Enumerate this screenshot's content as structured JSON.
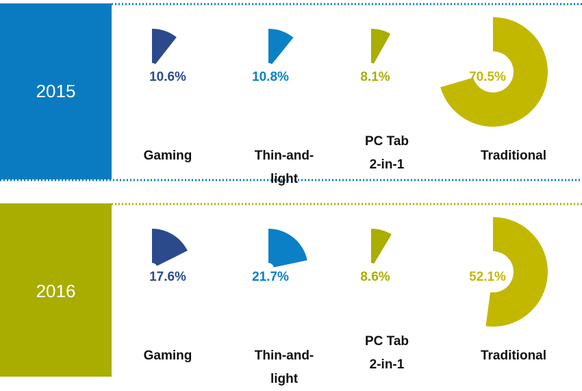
{
  "chart_data": [
    {
      "type": "donut-segments",
      "title": "2015",
      "color": "#0b7bc1",
      "categories": [
        "Gaming",
        "Thin-and-light",
        "PC Tab 2-in-1",
        "Traditional"
      ],
      "values": [
        10.6,
        10.8,
        8.1,
        70.5
      ],
      "value_labels": [
        "10.6%",
        "10.8%",
        "8.1%",
        "70.5%"
      ],
      "colors": [
        "#2b4a8c",
        "#0b80c6",
        "#a9ae00",
        "#c3b800"
      ]
    },
    {
      "type": "donut-segments",
      "title": "2016",
      "color": "#a8ad00",
      "categories": [
        "Gaming",
        "Thin-and-light",
        "PC Tab 2-in-1",
        "Traditional"
      ],
      "values": [
        17.6,
        21.7,
        8.6,
        52.1
      ],
      "value_labels": [
        "17.6%",
        "21.7%",
        "8.6%",
        "52.1%"
      ],
      "colors": [
        "#2b4a8c",
        "#0b80c6",
        "#a9ae00",
        "#c3b800"
      ]
    }
  ]
}
